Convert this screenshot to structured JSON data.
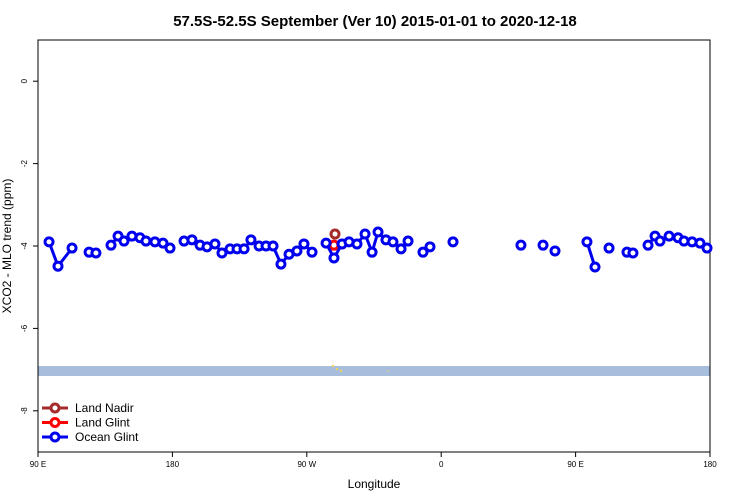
{
  "chart_data": {
    "type": "line",
    "title": "57.5S-52.5S September (Ver 10)   2015-01-01 to 2020-12-18",
    "x_label": "Longitude",
    "y_label": "XCO2 - MLO trend (ppm)",
    "xlim": [
      90,
      540
    ],
    "ylim": [
      -9,
      1
    ],
    "xticks": [
      {
        "value": 90,
        "label": "90 E"
      },
      {
        "value": 180,
        "label": "180"
      },
      {
        "value": 270,
        "label": "90 W"
      },
      {
        "value": 360,
        "label": "0"
      },
      {
        "value": 450,
        "label": "90 E"
      },
      {
        "value": 540,
        "label": "180"
      }
    ],
    "yticks": [
      -8,
      -6,
      -4,
      -2,
      0
    ],
    "legend": "bottom-left",
    "series": [
      {
        "name": "Land Nadir",
        "color": "#a52a2a",
        "x": [
          288.9
        ],
        "values": [
          -3.71
        ]
      },
      {
        "name": "Land Glint",
        "color": "#ff0000",
        "x": [
          288.2
        ],
        "values": [
          -3.98
        ]
      },
      {
        "name": "Ocean Glint",
        "color": "#0000ee",
        "x": [
          97.4,
          103.4,
          112.8,
          null,
          124.2,
          128.8,
          null,
          138.9,
          143.6,
          147.6,
          152.9,
          158.3,
          162.3,
          168.3,
          173.7,
          178.4,
          null,
          187.8,
          193.1,
          198.5,
          203.2,
          208.5,
          213.2,
          218.6,
          223.3,
          228,
          232.6,
          238,
          242.7,
          247.4,
          252.7,
          258.1,
          263.4,
          268.1,
          273.5,
          null,
          282.9,
          288.2,
          293.6,
          298.3,
          303.6,
          309,
          313.7,
          317.7,
          323,
          327.7,
          333.1,
          337.8,
          null,
          347.8,
          352.5,
          null,
          367.9,
          null,
          413.4,
          null,
          428.2,
          null,
          436.2,
          null,
          457.6,
          463,
          null,
          472.4,
          null,
          484.4,
          488.4,
          null,
          498.5,
          503.2,
          506.5,
          512.6,
          518.6,
          522.6,
          528,
          533.3,
          538
        ],
        "values": [
          -3.9,
          -4.49,
          -4.05,
          null,
          -4.15,
          -4.17,
          null,
          -3.98,
          -3.76,
          -3.88,
          -3.76,
          -3.8,
          -3.88,
          -3.9,
          -3.93,
          -4.05,
          null,
          -3.88,
          -3.85,
          -3.98,
          -4.02,
          -3.95,
          -4.17,
          -4.07,
          -4.07,
          -4.07,
          -3.85,
          -4.0,
          -4.0,
          -4.0,
          -4.44,
          -4.2,
          -4.12,
          -3.95,
          -4.15,
          null,
          -3.93,
          -4.29,
          -3.95,
          -3.9,
          -3.95,
          -3.71,
          -4.15,
          -3.66,
          -3.85,
          -3.9,
          -4.07,
          -3.88,
          null,
          -4.15,
          -4.02,
          null,
          -3.9,
          null,
          -3.98,
          null,
          -3.98,
          null,
          -4.12,
          null,
          -3.9,
          -4.51,
          null,
          -4.05,
          null,
          -4.15,
          -4.17,
          null,
          -3.98,
          -3.76,
          -3.88,
          -3.76,
          -3.8,
          -3.88,
          -3.9,
          -3.93,
          -4.05
        ]
      }
    ]
  }
}
